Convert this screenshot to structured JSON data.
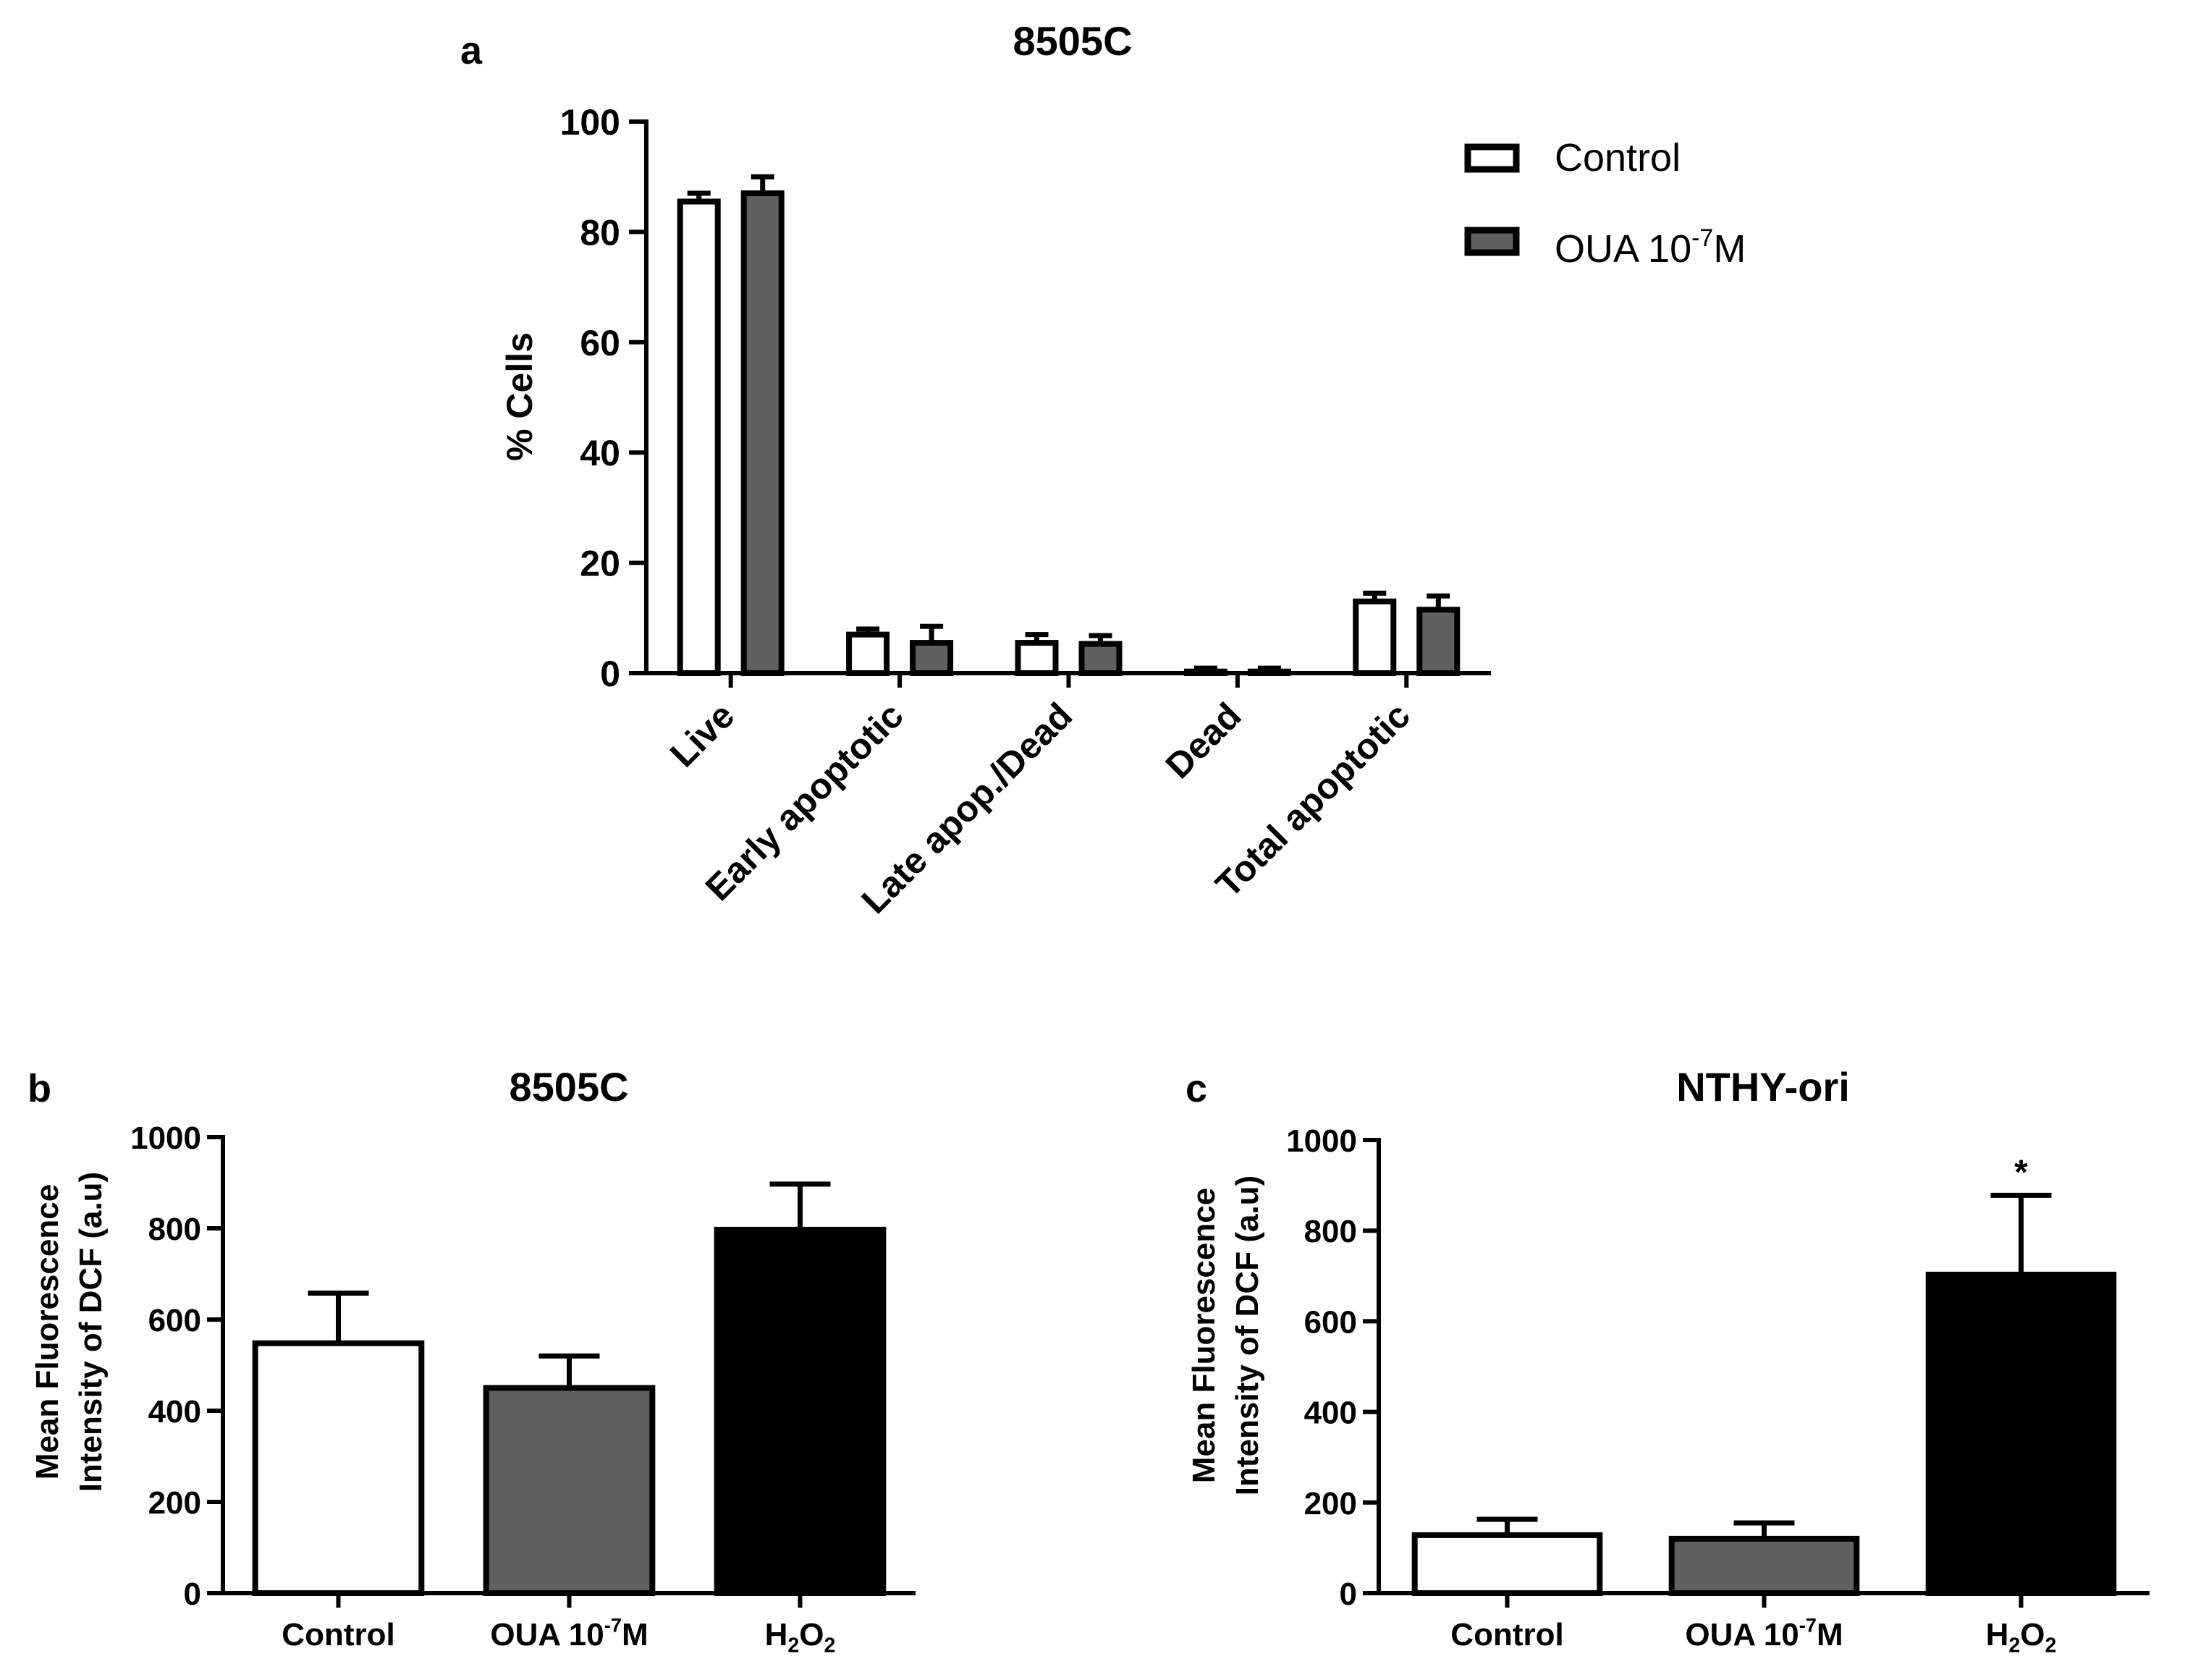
{
  "colors": {
    "control": "#ffffff",
    "oua": "#606060",
    "h2o2": "#000000",
    "axis": "#000000"
  },
  "panel_a": {
    "letter": "a",
    "legend": {
      "control": "Control",
      "oua_prefix": "OUA 10",
      "oua_exp": "-7",
      "oua_suffix": "M"
    }
  },
  "panel_b": {
    "letter": "b"
  },
  "panel_c": {
    "letter": "c",
    "significance": "*"
  },
  "chart_data": [
    {
      "id": "a",
      "type": "bar",
      "title": "8505C",
      "xlabel": "",
      "ylabel": "% Cells",
      "ylim": [
        0,
        100
      ],
      "yticks": [
        0,
        20,
        40,
        60,
        80,
        100
      ],
      "categories": [
        "Live",
        "Early apoptotic",
        "Late apop./Dead",
        "Dead",
        "Total apoptotic"
      ],
      "legend_position": "top-right",
      "series": [
        {
          "name": "Control",
          "color_key": "control",
          "values": [
            85.5,
            7.0,
            5.5,
            0.3,
            13.0
          ],
          "errors": [
            1.5,
            1.0,
            1.5,
            0.6,
            1.5
          ]
        },
        {
          "name": "OUA 10^-7M",
          "color_key": "oua",
          "values": [
            87.0,
            5.5,
            5.3,
            0.3,
            11.5
          ],
          "errors": [
            3.0,
            3.0,
            1.5,
            0.6,
            2.5
          ]
        }
      ]
    },
    {
      "id": "b",
      "type": "bar",
      "title": "8505C",
      "xlabel": "",
      "ylabel_line1": "Mean Fluorescence",
      "ylabel_line2": "Intensity of DCF (a.u)",
      "ylim": [
        0,
        1000
      ],
      "yticks": [
        0,
        200,
        400,
        600,
        800,
        1000
      ],
      "categories": [
        "Control",
        "OUA 10^-7M",
        "H2O2"
      ],
      "bar_color_keys": [
        "control",
        "oua",
        "h2o2"
      ],
      "values": [
        548,
        450,
        797
      ],
      "errors": [
        110,
        70,
        100
      ]
    },
    {
      "id": "c",
      "type": "bar",
      "title": "NTHY-ori",
      "xlabel": "",
      "ylabel_line1": "Mean Fluorescence",
      "ylabel_line2": "Intensity of DCF (a.u)",
      "ylim": [
        0,
        1000
      ],
      "yticks": [
        0,
        200,
        400,
        600,
        800,
        1000
      ],
      "categories": [
        "Control",
        "OUA 10^-7M",
        "H2O2"
      ],
      "bar_color_keys": [
        "control",
        "oua",
        "h2o2"
      ],
      "values": [
        128,
        120,
        703
      ],
      "errors": [
        35,
        35,
        175
      ],
      "annotations": [
        {
          "category_index": 2,
          "text": "*"
        }
      ]
    }
  ]
}
